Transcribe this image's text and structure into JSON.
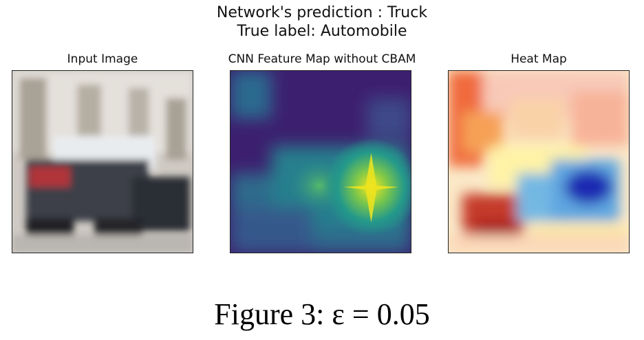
{
  "figure": {
    "title_line1": "Network's prediction : Truck",
    "title_line2": "True label: Automobile",
    "panels": [
      {
        "title": "Input Image"
      },
      {
        "title": "CNN Feature Map without CBAM"
      },
      {
        "title": "Heat Map"
      }
    ],
    "caption": "Figure 3: ε = 0.05"
  },
  "colors": {
    "feature_map_low": "#3b1a6e",
    "feature_map_mid": "#2a8c8a",
    "feature_map_high": "#f2e51d",
    "heat_hot": "#c81d1d",
    "heat_cold": "#1e2fb4"
  }
}
